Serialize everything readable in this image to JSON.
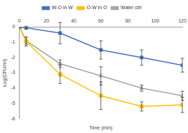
{
  "chart_data": {
    "type": "line",
    "x_label": "Time (min)",
    "y_label": "Log(CFU/ml)",
    "xlim": [
      0,
      120
    ],
    "xticks": [
      0,
      20,
      40,
      60,
      80,
      100,
      120
    ],
    "ylim": [
      -6,
      0
    ],
    "yticks": [
      0,
      -1,
      -2,
      -3,
      -4,
      -5,
      -6
    ],
    "grid": false,
    "legend": "top",
    "series": [
      {
        "name": "W-O in W",
        "color": "#4472c4",
        "marker": "square",
        "line_style": "solid",
        "x": [
          0,
          5,
          30,
          60,
          90,
          120
        ],
        "values": [
          0,
          -0.05,
          -0.4,
          -1.5,
          -2.0,
          -2.5
        ],
        "errors": [
          0,
          0.1,
          0.7,
          0.6,
          0.5,
          0.45
        ]
      },
      {
        "name": "O-W in O",
        "color": "#ffc000",
        "marker": "circle",
        "line_style": "solid",
        "x": [
          0,
          5,
          30,
          60,
          90,
          120
        ],
        "values": [
          0,
          -0.95,
          -3.1,
          -4.5,
          -5.2,
          -5.1
        ],
        "errors": [
          0,
          0.3,
          0.6,
          0.9,
          0.3,
          0.5
        ]
      },
      {
        "name": "Water ctrl",
        "color": "#a5a5a5",
        "marker": "triangle",
        "line_style": "solid",
        "x": [
          0,
          5,
          30,
          60,
          90,
          120
        ],
        "values": [
          0,
          -0.9,
          -2.4,
          -3.2,
          -4.0,
          -4.5
        ],
        "errors": [
          0,
          0.25,
          0.25,
          0.6,
          0.2,
          0.3
        ]
      }
    ]
  }
}
